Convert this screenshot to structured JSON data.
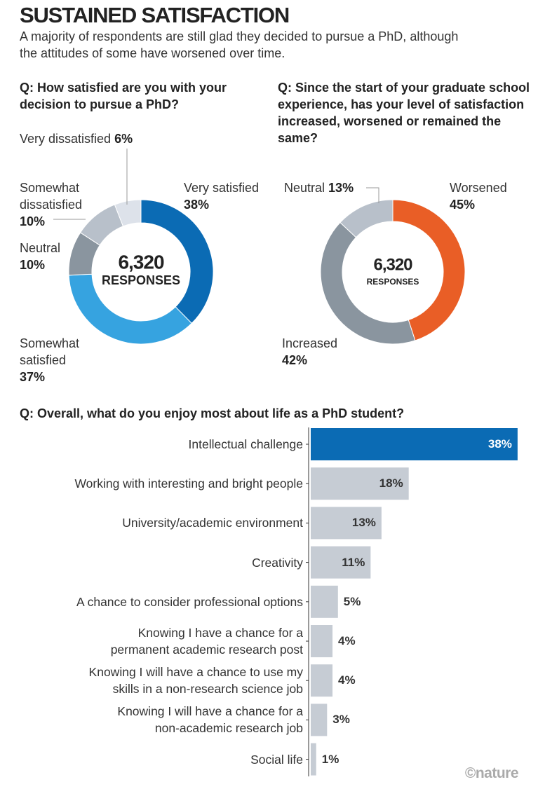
{
  "header": {
    "title": "SUSTAINED SATISFACTION",
    "subtitle": "A majority of respondents are still glad they decided to pursue a PhD, although the attitudes of some have worsened over time."
  },
  "chart_data": [
    {
      "type": "pie",
      "title": "Q: How satisfied are you with your decision to pursue a PhD?",
      "categories": [
        "Very satisfied",
        "Somewhat satisfied",
        "Neutral",
        "Somewhat dissatisfied",
        "Very dissatisfied"
      ],
      "values": [
        38,
        37,
        10,
        10,
        6
      ],
      "value_labels": [
        "38%",
        "37%",
        "10%",
        "10%",
        "6%"
      ],
      "colors": [
        "#0b6bb4",
        "#36a3e0",
        "#8a959f",
        "#b8c0ca",
        "#dde2ea"
      ],
      "total": {
        "value": 6320,
        "label": "6,320"
      },
      "total_unit": "RESPONSES"
    },
    {
      "type": "pie",
      "title": "Q: Since the start of your graduate school experience, has your level of satisfaction increased, worsened or remained the same?",
      "categories": [
        "Worsened",
        "Increased",
        "Neutral"
      ],
      "values": [
        45,
        42,
        13
      ],
      "value_labels": [
        "45%",
        "42%",
        "13%"
      ],
      "colors": [
        "#e95e26",
        "#8a959f",
        "#b8c0ca"
      ],
      "total": {
        "value": 6320,
        "label": "6,320"
      },
      "total_unit": "RESPONSES"
    },
    {
      "type": "bar",
      "title": "Q: Overall, what do you enjoy most about life as a PhD student?",
      "categories": [
        "Intellectual challenge",
        "Working with interesting and bright people",
        "University/academic environment",
        "Creativity",
        "A chance to consider professional options",
        "Knowing I have a chance for a\npermanent academic research post",
        "Knowing I will have a chance to use my\nskills in a non-research science job",
        "Knowing I will have a chance for a\nnon-academic research job",
        "Social life"
      ],
      "values": [
        38,
        18,
        13,
        11,
        5,
        4,
        4,
        3,
        1
      ],
      "value_labels": [
        "38%",
        "18%",
        "13%",
        "11%",
        "5%",
        "4%",
        "4%",
        "3%",
        "1%"
      ],
      "colors": [
        "#0b6bb4",
        "#c6ccd4",
        "#c6ccd4",
        "#c6ccd4",
        "#c6ccd4",
        "#c6ccd4",
        "#c6ccd4",
        "#c6ccd4",
        "#c6ccd4"
      ]
    }
  ],
  "credit": "©nature"
}
